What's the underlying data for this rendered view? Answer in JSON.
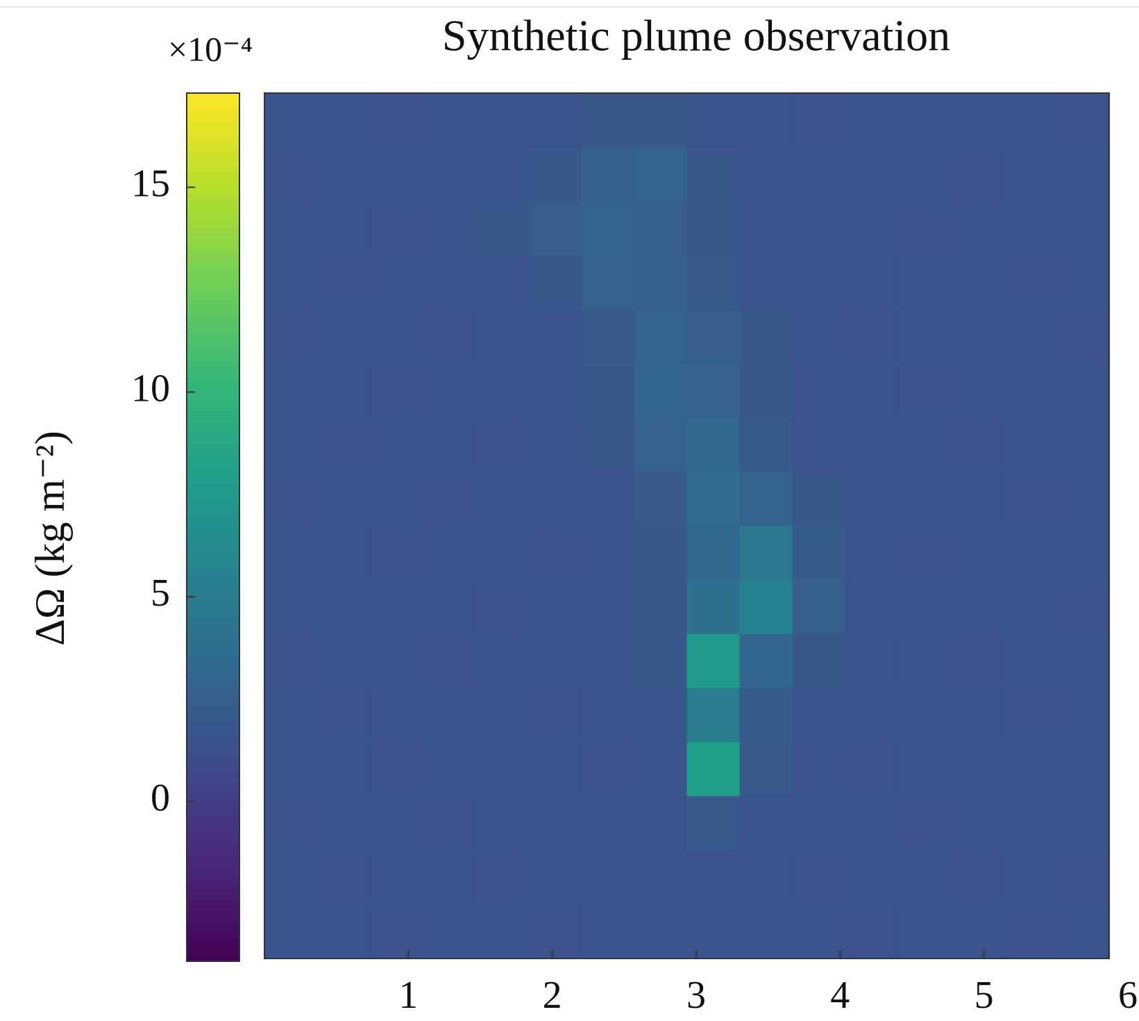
{
  "chart_data": {
    "type": "heatmap",
    "title": "Synthetic plume observation",
    "colorbar_label": "ΔΩ (kg m⁻²)",
    "colorbar_exponent": "×10⁻⁴",
    "colormap": "viridis",
    "clim": [
      -3.9,
      17.3
    ],
    "cticks": [
      0,
      5,
      10,
      15
    ],
    "xlim": [
      0,
      5.87
    ],
    "xticks": [
      1,
      2,
      3,
      4,
      5,
      6
    ],
    "z": [
      [
        1.5,
        1.7,
        1.4,
        1.6,
        1.5,
        1.6,
        1.8,
        1.9,
        1.6,
        1.5,
        1.4,
        1.6,
        1.5,
        1.7,
        1.5,
        1.4
      ],
      [
        1.4,
        1.6,
        1.5,
        1.5,
        1.7,
        1.9,
        2.5,
        2.8,
        1.8,
        1.6,
        1.5,
        1.5,
        1.6,
        1.4,
        1.6,
        1.5
      ],
      [
        1.6,
        1.5,
        1.4,
        1.6,
        1.8,
        2.3,
        2.8,
        2.4,
        1.9,
        1.6,
        1.5,
        1.7,
        1.4,
        1.5,
        1.6,
        1.5
      ],
      [
        1.5,
        1.4,
        1.6,
        1.5,
        1.6,
        1.9,
        2.6,
        2.5,
        2.0,
        1.7,
        1.6,
        1.5,
        1.5,
        1.6,
        1.4,
        1.6
      ],
      [
        1.4,
        1.6,
        1.5,
        1.4,
        1.5,
        1.7,
        2.0,
        2.8,
        2.3,
        1.8,
        1.5,
        1.4,
        1.6,
        1.5,
        1.5,
        1.4
      ],
      [
        1.6,
        1.5,
        1.4,
        1.6,
        1.5,
        1.6,
        1.9,
        3.0,
        2.6,
        1.9,
        1.6,
        1.5,
        1.4,
        1.6,
        1.5,
        1.6
      ],
      [
        1.5,
        1.4,
        1.6,
        1.5,
        1.4,
        1.5,
        1.8,
        2.7,
        3.2,
        2.1,
        1.6,
        1.5,
        1.6,
        1.4,
        1.6,
        1.5
      ],
      [
        1.4,
        1.6,
        1.5,
        1.4,
        1.6,
        1.5,
        1.6,
        2.0,
        3.5,
        2.8,
        1.8,
        1.6,
        1.5,
        1.5,
        1.4,
        1.6
      ],
      [
        1.6,
        1.5,
        1.4,
        1.6,
        1.5,
        1.4,
        1.6,
        1.9,
        3.2,
        4.5,
        2.2,
        1.6,
        1.4,
        1.6,
        1.5,
        1.5
      ],
      [
        1.5,
        1.6,
        1.5,
        1.5,
        1.4,
        1.6,
        1.5,
        1.8,
        4.0,
        5.5,
        2.4,
        1.7,
        1.6,
        1.5,
        1.6,
        1.4
      ],
      [
        1.4,
        1.5,
        1.6,
        1.4,
        1.6,
        1.5,
        1.6,
        1.9,
        7.5,
        3.0,
        1.8,
        1.5,
        1.5,
        1.4,
        1.5,
        1.6
      ],
      [
        1.6,
        1.4,
        1.5,
        1.6,
        1.5,
        1.4,
        1.5,
        1.7,
        5.0,
        2.2,
        1.6,
        1.5,
        1.6,
        1.5,
        1.4,
        1.5
      ],
      [
        1.5,
        1.6,
        1.4,
        1.5,
        1.6,
        1.5,
        1.4,
        1.7,
        8.0,
        2.0,
        1.6,
        1.4,
        1.5,
        1.6,
        1.5,
        1.6
      ],
      [
        1.4,
        1.5,
        1.6,
        1.4,
        1.5,
        1.6,
        1.5,
        1.6,
        2.0,
        1.7,
        1.5,
        1.6,
        1.4,
        1.5,
        1.6,
        1.5
      ],
      [
        1.6,
        1.4,
        1.5,
        1.6,
        1.4,
        1.5,
        1.6,
        1.7,
        1.6,
        1.5,
        1.4,
        1.5,
        1.6,
        1.4,
        1.5,
        1.4
      ],
      [
        1.5,
        1.6,
        1.4,
        1.5,
        1.6,
        1.4,
        1.5,
        1.6,
        1.5,
        1.6,
        1.5,
        1.4,
        1.5,
        1.6,
        1.4,
        1.5
      ]
    ]
  }
}
